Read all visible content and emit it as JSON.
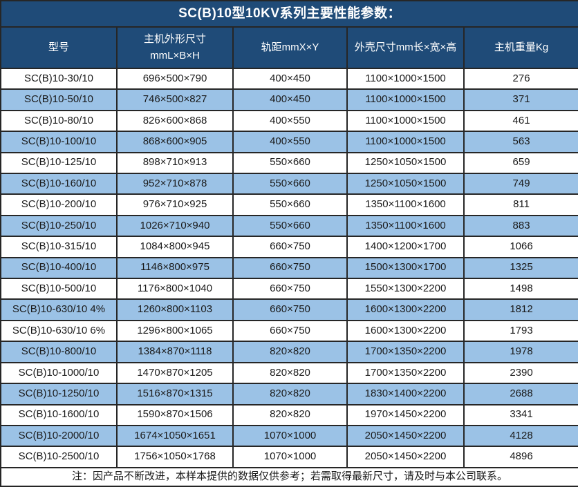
{
  "title": "SC(B)10型10KV系列主要性能参数：",
  "columns": [
    {
      "label": "型号"
    },
    {
      "label": "主机外形尺寸",
      "sub": "mmL×B×H"
    },
    {
      "label": "轨距mmX×Y"
    },
    {
      "label": "外壳尺寸mm长×宽×高"
    },
    {
      "label": "主机重量Kg"
    }
  ],
  "rows": [
    [
      "SC(B)10-30/10",
      "696×500×790",
      "400×450",
      "1100×1000×1500",
      "276"
    ],
    [
      "SC(B)10-50/10",
      "746×500×827",
      "400×450",
      "1100×1000×1500",
      "371"
    ],
    [
      "SC(B)10-80/10",
      "826×600×868",
      "400×550",
      "1100×1000×1500",
      "461"
    ],
    [
      "SC(B)10-100/10",
      "868×600×905",
      "400×550",
      "1100×1000×1500",
      "563"
    ],
    [
      "SC(B)10-125/10",
      "898×710×913",
      "550×660",
      "1250×1050×1500",
      "659"
    ],
    [
      "SC(B)10-160/10",
      "952×710×878",
      "550×660",
      "1250×1050×1500",
      "749"
    ],
    [
      "SC(B)10-200/10",
      "976×710×925",
      "550×660",
      "1350×1100×1600",
      "811"
    ],
    [
      "SC(B)10-250/10",
      "1026×710×940",
      "550×660",
      "1350×1100×1600",
      "883"
    ],
    [
      "SC(B)10-315/10",
      "1084×800×945",
      "660×750",
      "1400×1200×1700",
      "1066"
    ],
    [
      "SC(B)10-400/10",
      "1146×800×975",
      "660×750",
      "1500×1300×1700",
      "1325"
    ],
    [
      "SC(B)10-500/10",
      "1176×800×1040",
      "660×750",
      "1550×1300×2200",
      "1498"
    ],
    [
      "SC(B)10-630/10 4%",
      "1260×800×1103",
      "660×750",
      "1600×1300×2200",
      "1812"
    ],
    [
      "SC(B)10-630/10 6%",
      "1296×800×1065",
      "660×750",
      "1600×1300×2200",
      "1793"
    ],
    [
      "SC(B)10-800/10",
      "1384×870×1118",
      "820×820",
      "1700×1350×2200",
      "1978"
    ],
    [
      "SC(B)10-1000/10",
      "1470×870×1205",
      "820×820",
      "1700×1350×2200",
      "2390"
    ],
    [
      "SC(B)10-1250/10",
      "1516×870×1315",
      "820×820",
      "1830×1400×2200",
      "2688"
    ],
    [
      "SC(B)10-1600/10",
      "1590×870×1506",
      "820×820",
      "1970×1450×2200",
      "3341"
    ],
    [
      "SC(B)10-2000/10",
      "1674×1050×1651",
      "1070×1000",
      "2050×1450×2200",
      "4128"
    ],
    [
      "SC(B)10-2500/10",
      "1756×1050×1768",
      "1070×1000",
      "2050×1450×2200",
      "4896"
    ]
  ],
  "note": "注：因产品不断改进，本样本提供的数据仅供参考；若需取得最新尺寸，请及时与本公司联系。",
  "colors": {
    "header_bg": "#1F4B78",
    "stripe_bg": "#9BC2E6",
    "border": "#262626",
    "header_text": "#FFFFFF",
    "body_text": "#1A1A1A"
  }
}
